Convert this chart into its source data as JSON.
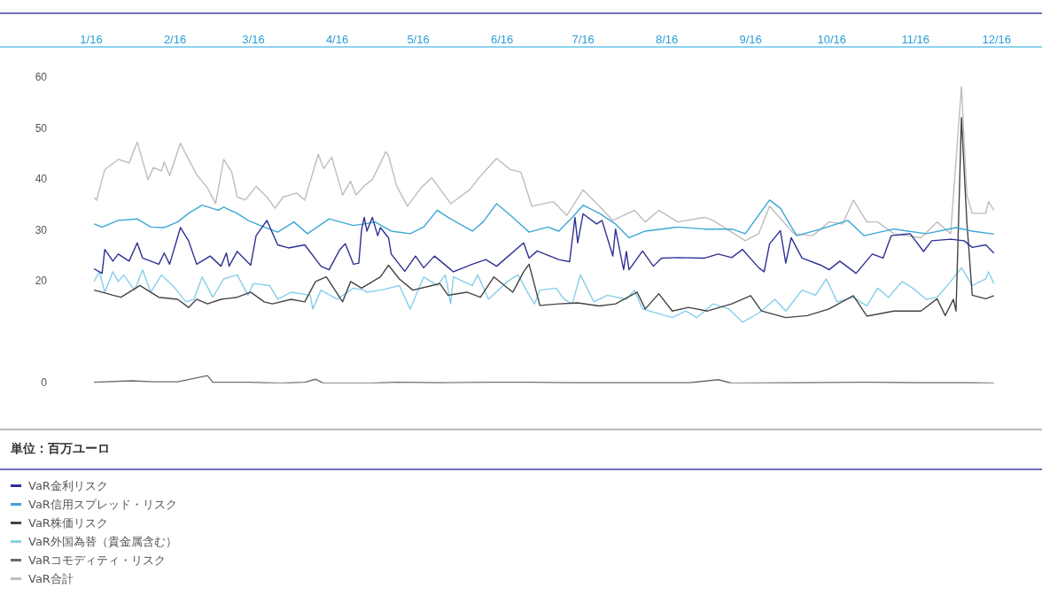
{
  "chart_data": {
    "type": "line",
    "annotations": [
      "単位：百万ユーロ"
    ],
    "legend": "bottom",
    "xlim": [
      "2016-01-01",
      "2016-12-01"
    ],
    "xticks": [
      {
        "value": "2016-01-01",
        "label": "1/16"
      },
      {
        "value": "2016-02-01",
        "label": "2/16"
      },
      {
        "value": "2016-03-01",
        "label": "3/16"
      },
      {
        "value": "2016-04-01",
        "label": "4/16"
      },
      {
        "value": "2016-05-01",
        "label": "5/16"
      },
      {
        "value": "2016-06-01",
        "label": "6/16"
      },
      {
        "value": "2016-07-01",
        "label": "7/16"
      },
      {
        "value": "2016-08-01",
        "label": "8/16"
      },
      {
        "value": "2016-09-01",
        "label": "9/16"
      },
      {
        "value": "2016-10-01",
        "label": "10/16"
      },
      {
        "value": "2016-11-01",
        "label": "11/16"
      },
      {
        "value": "2016-12-01",
        "label": "12/16"
      }
    ],
    "ylim": [
      0,
      60
    ],
    "yticks": [
      0,
      20,
      30,
      40,
      50,
      60
    ],
    "series": [
      {
        "name": "VaR金利リスク",
        "color": "#2e3192",
        "x": [
          "2016-01-02",
          "2016-01-05",
          "2016-01-06",
          "2016-01-09",
          "2016-01-11",
          "2016-01-15",
          "2016-01-18",
          "2016-01-20",
          "2016-01-26",
          "2016-01-28",
          "2016-01-30",
          "2016-02-03",
          "2016-02-06",
          "2016-02-09",
          "2016-02-14",
          "2016-02-18",
          "2016-02-20",
          "2016-02-21",
          "2016-02-24",
          "2016-02-29",
          "2016-03-02",
          "2016-03-06",
          "2016-03-10",
          "2016-03-14",
          "2016-03-20",
          "2016-03-26",
          "2016-03-29",
          "2016-04-02",
          "2016-04-04",
          "2016-04-07",
          "2016-04-09",
          "2016-04-10",
          "2016-04-11",
          "2016-04-12",
          "2016-04-14",
          "2016-04-16",
          "2016-04-17",
          "2016-04-20",
          "2016-04-21",
          "2016-04-26",
          "2016-04-30",
          "2016-05-03",
          "2016-05-07",
          "2016-05-14",
          "2016-05-21",
          "2016-05-26",
          "2016-05-30",
          "2016-06-09",
          "2016-06-11",
          "2016-06-14",
          "2016-06-22",
          "2016-06-26",
          "2016-06-28",
          "2016-06-29",
          "2016-07-01",
          "2016-07-06",
          "2016-07-08",
          "2016-07-12",
          "2016-07-13",
          "2016-07-16",
          "2016-07-17",
          "2016-07-18",
          "2016-07-23",
          "2016-07-27",
          "2016-07-30",
          "2016-08-05",
          "2016-08-15",
          "2016-08-20",
          "2016-08-25",
          "2016-08-29",
          "2016-09-04",
          "2016-09-06",
          "2016-09-08",
          "2016-09-12",
          "2016-09-14",
          "2016-09-16",
          "2016-09-20",
          "2016-09-27",
          "2016-09-30",
          "2016-10-04",
          "2016-10-10",
          "2016-10-16",
          "2016-10-20",
          "2016-10-23",
          "2016-10-30",
          "2016-11-04",
          "2016-11-07",
          "2016-11-14",
          "2016-11-19",
          "2016-11-22",
          "2016-11-27",
          "2016-11-30"
        ],
        "values": [
          22.5,
          21.6,
          26.3,
          24.0,
          25.4,
          24.0,
          27.6,
          24.6,
          23.4,
          25.6,
          23.4,
          30.6,
          28.0,
          23.4,
          25.0,
          23.0,
          25.6,
          23.0,
          25.9,
          23.2,
          29.0,
          32.0,
          27.2,
          26.6,
          27.2,
          23.0,
          22.3,
          26.3,
          27.4,
          23.4,
          23.6,
          30.0,
          32.6,
          29.9,
          32.6,
          29.0,
          30.6,
          28.6,
          25.4,
          22.0,
          25.0,
          22.7,
          25.0,
          21.9,
          23.4,
          24.3,
          23.0,
          27.6,
          24.6,
          26.0,
          24.3,
          23.9,
          32.6,
          27.6,
          33.3,
          31.3,
          32.0,
          25.0,
          30.3,
          22.3,
          25.9,
          22.3,
          26.0,
          23.0,
          24.6,
          24.7,
          24.6,
          25.4,
          24.7,
          26.3,
          22.7,
          21.9,
          27.4,
          30.0,
          23.6,
          28.6,
          24.6,
          23.2,
          22.3,
          24.0,
          21.6,
          25.4,
          24.6,
          29.0,
          29.4,
          25.9,
          28.0,
          28.3,
          28.0,
          26.7,
          27.2,
          25.6
        ]
      },
      {
        "name": "VaR信用スプレッド・リスク",
        "color": "#3aa7d6",
        "x": [
          "2016-01-02",
          "2016-01-05",
          "2016-01-11",
          "2016-01-18",
          "2016-01-23",
          "2016-01-28",
          "2016-02-02",
          "2016-02-06",
          "2016-02-11",
          "2016-02-17",
          "2016-02-19",
          "2016-02-24",
          "2016-02-28",
          "2016-03-05",
          "2016-03-10",
          "2016-03-16",
          "2016-03-21",
          "2016-03-29",
          "2016-04-07",
          "2016-04-11",
          "2016-04-15",
          "2016-04-21",
          "2016-04-28",
          "2016-05-03",
          "2016-05-08",
          "2016-05-12",
          "2016-05-21",
          "2016-05-25",
          "2016-05-30",
          "2016-06-05",
          "2016-06-11",
          "2016-06-18",
          "2016-06-22",
          "2016-06-27",
          "2016-07-01",
          "2016-07-07",
          "2016-07-13",
          "2016-07-18",
          "2016-07-24",
          "2016-08-05",
          "2016-08-15",
          "2016-08-25",
          "2016-08-30",
          "2016-09-08",
          "2016-09-12",
          "2016-09-18",
          "2016-09-27",
          "2016-10-07",
          "2016-10-13",
          "2016-10-24",
          "2016-11-05",
          "2016-11-16",
          "2016-11-22",
          "2016-11-30"
        ],
        "values": [
          31.3,
          30.7,
          32.0,
          32.3,
          30.7,
          30.6,
          31.7,
          33.4,
          35.0,
          34.0,
          34.6,
          33.4,
          32.0,
          30.7,
          29.7,
          31.7,
          29.4,
          32.3,
          31.0,
          31.3,
          31.7,
          29.9,
          29.4,
          30.7,
          34.0,
          32.6,
          29.9,
          31.7,
          35.3,
          32.6,
          29.7,
          30.7,
          29.9,
          32.6,
          35.0,
          33.4,
          31.3,
          28.6,
          29.9,
          30.7,
          30.3,
          30.3,
          29.4,
          36.0,
          34.4,
          29.0,
          30.3,
          32.0,
          29.0,
          30.3,
          29.4,
          30.6,
          29.9,
          29.3
        ]
      },
      {
        "name": "VaR株価リスク",
        "color": "#444444",
        "x": [
          "2016-01-02",
          "2016-01-05",
          "2016-01-09",
          "2016-01-12",
          "2016-01-19",
          "2016-01-26",
          "2016-02-02",
          "2016-02-06",
          "2016-02-09",
          "2016-02-13",
          "2016-02-18",
          "2016-02-24",
          "2016-02-29",
          "2016-03-05",
          "2016-03-08",
          "2016-03-15",
          "2016-03-20",
          "2016-03-24",
          "2016-03-28",
          "2016-04-03",
          "2016-04-06",
          "2016-04-10",
          "2016-04-17",
          "2016-04-20",
          "2016-04-24",
          "2016-04-29",
          "2016-05-06",
          "2016-05-09",
          "2016-05-12",
          "2016-05-19",
          "2016-05-24",
          "2016-05-29",
          "2016-06-05",
          "2016-06-09",
          "2016-06-11",
          "2016-06-15",
          "2016-06-22",
          "2016-06-29",
          "2016-07-07",
          "2016-07-13",
          "2016-07-21",
          "2016-07-24",
          "2016-07-29",
          "2016-08-03",
          "2016-08-09",
          "2016-08-16",
          "2016-08-25",
          "2016-09-01",
          "2016-09-05",
          "2016-09-14",
          "2016-09-22",
          "2016-09-30",
          "2016-10-09",
          "2016-10-14",
          "2016-10-24",
          "2016-11-03",
          "2016-11-09",
          "2016-11-12",
          "2016-11-15",
          "2016-11-16",
          "2016-11-18",
          "2016-11-20",
          "2016-11-22",
          "2016-11-27",
          "2016-11-30"
        ],
        "values": [
          18.3,
          17.9,
          17.3,
          16.9,
          19.2,
          16.9,
          16.5,
          14.9,
          16.5,
          15.6,
          16.5,
          16.9,
          17.9,
          16.0,
          15.6,
          16.5,
          16.0,
          20.0,
          20.9,
          16.0,
          20.0,
          18.7,
          20.9,
          23.2,
          20.5,
          18.3,
          19.2,
          19.6,
          17.3,
          17.9,
          16.9,
          20.9,
          17.9,
          21.9,
          23.4,
          15.3,
          15.6,
          15.8,
          15.2,
          15.6,
          17.9,
          14.6,
          17.6,
          14.2,
          14.9,
          14.2,
          15.6,
          17.2,
          14.2,
          12.9,
          13.3,
          14.6,
          17.2,
          13.2,
          14.2,
          14.2,
          16.6,
          13.3,
          16.5,
          14.2,
          52.2,
          31.7,
          17.3,
          16.6,
          17.2
        ]
      },
      {
        "name": "VaR外国為替（貴金属含む）",
        "color": "#86cfea",
        "x": [
          "2016-01-02",
          "2016-01-04",
          "2016-01-06",
          "2016-01-09",
          "2016-01-11",
          "2016-01-13",
          "2016-01-17",
          "2016-01-20",
          "2016-01-23",
          "2016-01-27",
          "2016-02-01",
          "2016-02-05",
          "2016-02-08",
          "2016-02-11",
          "2016-02-15",
          "2016-02-19",
          "2016-02-24",
          "2016-02-28",
          "2016-03-01",
          "2016-03-07",
          "2016-03-10",
          "2016-03-15",
          "2016-03-22",
          "2016-03-23",
          "2016-03-26",
          "2016-04-01",
          "2016-04-07",
          "2016-04-11",
          "2016-04-12",
          "2016-04-17",
          "2016-04-24",
          "2016-04-28",
          "2016-05-03",
          "2016-05-08",
          "2016-05-11",
          "2016-05-13",
          "2016-05-14",
          "2016-05-21",
          "2016-05-23",
          "2016-05-27",
          "2016-06-03",
          "2016-06-07",
          "2016-06-10",
          "2016-06-13",
          "2016-06-15",
          "2016-06-21",
          "2016-06-24",
          "2016-06-27",
          "2016-06-30",
          "2016-07-05",
          "2016-07-10",
          "2016-07-17",
          "2016-07-20",
          "2016-07-23",
          "2016-08-03",
          "2016-08-08",
          "2016-08-12",
          "2016-08-15",
          "2016-08-18",
          "2016-08-24",
          "2016-08-29",
          "2016-09-04",
          "2016-09-10",
          "2016-09-14",
          "2016-09-20",
          "2016-09-25",
          "2016-09-29",
          "2016-10-03",
          "2016-10-09",
          "2016-10-14",
          "2016-10-18",
          "2016-10-22",
          "2016-10-27",
          "2016-10-31",
          "2016-11-05",
          "2016-11-09",
          "2016-11-14",
          "2016-11-18",
          "2016-11-22",
          "2016-11-27",
          "2016-11-28",
          "2016-11-30"
        ],
        "values": [
          20.0,
          21.9,
          17.9,
          21.9,
          20.0,
          21.3,
          18.3,
          22.3,
          17.9,
          21.3,
          18.7,
          16.0,
          16.5,
          20.9,
          16.9,
          20.5,
          21.3,
          17.3,
          19.6,
          19.2,
          16.5,
          17.9,
          17.3,
          14.6,
          18.3,
          16.5,
          18.7,
          18.3,
          17.9,
          18.3,
          19.2,
          14.6,
          20.9,
          19.2,
          21.3,
          15.6,
          20.9,
          19.2,
          21.3,
          16.5,
          20.0,
          21.3,
          18.3,
          15.6,
          18.3,
          18.7,
          16.5,
          15.6,
          21.3,
          16.0,
          17.3,
          16.5,
          18.3,
          14.6,
          12.9,
          14.2,
          12.9,
          14.2,
          15.6,
          14.6,
          12.0,
          13.8,
          16.5,
          14.2,
          18.3,
          17.3,
          20.5,
          16.0,
          16.9,
          15.2,
          18.7,
          16.9,
          20.0,
          18.7,
          16.5,
          16.9,
          20.0,
          22.7,
          19.2,
          20.5,
          21.9,
          19.6
        ]
      },
      {
        "name": "VaRコモディティ・リスク",
        "color": "#6b6b6b",
        "x": [
          "2016-01-02",
          "2016-01-16",
          "2016-01-24",
          "2016-02-02",
          "2016-02-13",
          "2016-02-15",
          "2016-02-28",
          "2016-03-11",
          "2016-03-20",
          "2016-03-24",
          "2016-03-27",
          "2016-04-13",
          "2016-04-23",
          "2016-05-09",
          "2016-05-28",
          "2016-06-11",
          "2016-06-27",
          "2016-07-13",
          "2016-08-09",
          "2016-08-20",
          "2016-08-25",
          "2016-09-18",
          "2016-10-14",
          "2016-11-03",
          "2016-11-22",
          "2016-11-30"
        ],
        "values": [
          0.2,
          0.5,
          0.3,
          0.3,
          1.5,
          0.2,
          0.2,
          0.0,
          0.2,
          0.8,
          0.0,
          0.0,
          0.2,
          0.1,
          0.2,
          0.2,
          0.1,
          0.1,
          0.1,
          0.7,
          0.0,
          0.1,
          0.2,
          0.1,
          0.1,
          0.0
        ]
      },
      {
        "name": "VaR合計",
        "color": "#bdbdbd",
        "x": [
          "2016-01-02",
          "2016-01-03",
          "2016-01-06",
          "2016-01-11",
          "2016-01-15",
          "2016-01-18",
          "2016-01-22",
          "2016-01-24",
          "2016-01-27",
          "2016-01-28",
          "2016-01-30",
          "2016-02-03",
          "2016-02-05",
          "2016-02-09",
          "2016-02-13",
          "2016-02-16",
          "2016-02-19",
          "2016-02-22",
          "2016-02-24",
          "2016-02-27",
          "2016-03-02",
          "2016-03-06",
          "2016-03-09",
          "2016-03-12",
          "2016-03-17",
          "2016-03-20",
          "2016-03-25",
          "2016-03-27",
          "2016-03-30",
          "2016-04-03",
          "2016-04-06",
          "2016-04-08",
          "2016-04-11",
          "2016-04-14",
          "2016-04-19",
          "2016-04-20",
          "2016-04-23",
          "2016-04-27",
          "2016-05-02",
          "2016-05-06",
          "2016-05-13",
          "2016-05-20",
          "2016-05-24",
          "2016-05-30",
          "2016-06-04",
          "2016-06-08",
          "2016-06-12",
          "2016-06-20",
          "2016-06-25",
          "2016-07-01",
          "2016-07-07",
          "2016-07-12",
          "2016-07-20",
          "2016-07-24",
          "2016-07-29",
          "2016-08-05",
          "2016-08-15",
          "2016-08-18",
          "2016-08-22",
          "2016-08-30",
          "2016-09-04",
          "2016-09-08",
          "2016-09-17",
          "2016-09-24",
          "2016-09-30",
          "2016-10-05",
          "2016-10-09",
          "2016-10-14",
          "2016-10-18",
          "2016-10-24",
          "2016-11-03",
          "2016-11-09",
          "2016-11-14",
          "2016-11-18",
          "2016-11-20",
          "2016-11-22",
          "2016-11-27",
          "2016-11-28",
          "2016-11-30"
        ],
        "values": [
          36.5,
          36.0,
          42.0,
          44.0,
          43.3,
          47.4,
          40.0,
          42.4,
          41.7,
          43.5,
          40.8,
          47.2,
          45.0,
          41.0,
          38.4,
          35.3,
          44.0,
          41.5,
          36.6,
          36.0,
          38.7,
          36.6,
          34.4,
          36.6,
          37.4,
          36.0,
          45.0,
          42.2,
          44.4,
          37.0,
          39.7,
          37.0,
          38.8,
          40.0,
          45.5,
          44.7,
          38.8,
          34.8,
          38.4,
          40.4,
          35.3,
          38.0,
          40.7,
          44.2,
          42.0,
          41.5,
          34.8,
          35.7,
          33.0,
          38.0,
          34.8,
          32.0,
          34.0,
          31.7,
          34.0,
          31.7,
          32.6,
          32.0,
          30.7,
          28.0,
          29.4,
          34.8,
          29.4,
          29.0,
          31.7,
          31.3,
          36.0,
          31.7,
          31.7,
          29.4,
          28.6,
          31.7,
          29.4,
          58.3,
          37.0,
          33.4,
          33.4,
          35.7,
          34.0
        ]
      }
    ]
  }
}
